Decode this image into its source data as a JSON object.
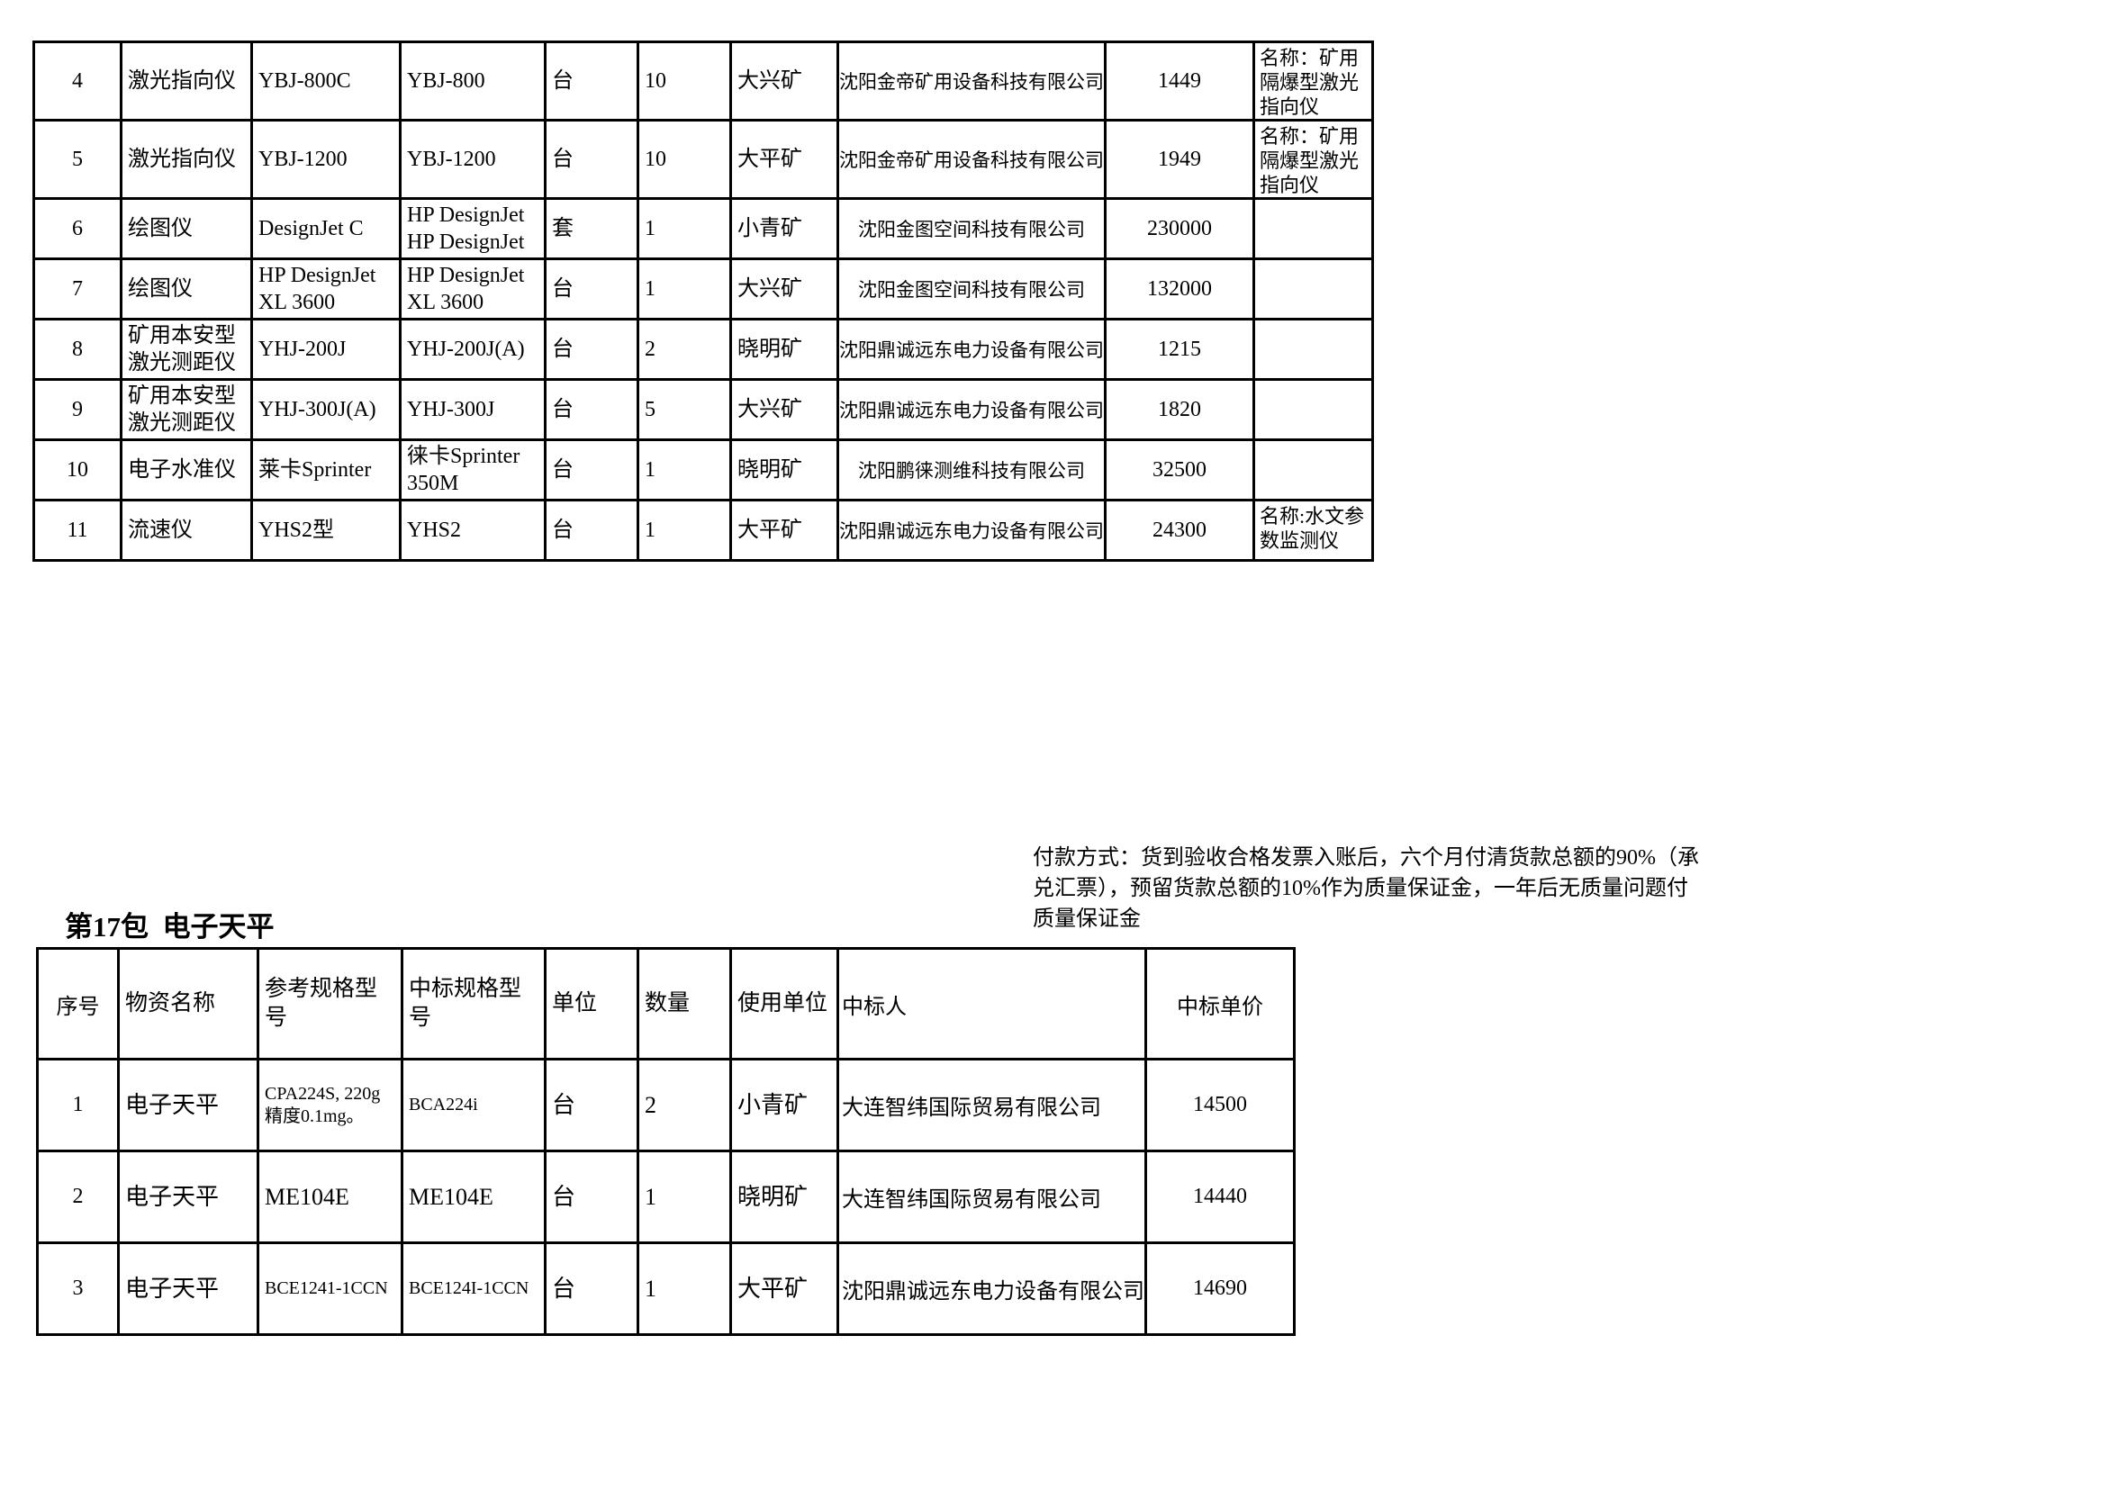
{
  "table1": {
    "rows": [
      {
        "seq": "4",
        "name": "激光指向仪",
        "ref": "YBJ-800C",
        "win": "YBJ-800",
        "unit": "台",
        "qty": "10",
        "user": "大兴矿",
        "bidder": "沈阳金帝矿用设备科技有限公司",
        "price": "1449",
        "note": "名称：矿用隔爆型激光指向仪"
      },
      {
        "seq": "5",
        "name": "激光指向仪",
        "ref": "YBJ-1200",
        "win": "YBJ-1200",
        "unit": "台",
        "qty": "10",
        "user": "大平矿",
        "bidder": "沈阳金帝矿用设备科技有限公司",
        "price": "1949",
        "note": "名称：矿用隔爆型激光指向仪"
      },
      {
        "seq": "6",
        "name": "绘图仪",
        "ref": "DesignJet C",
        "win": "HP DesignJet HP DesignJet",
        "unit": "套",
        "qty": "1",
        "user": "小青矿",
        "bidder": "沈阳金图空间科技有限公司",
        "price": "230000",
        "note": ""
      },
      {
        "seq": "7",
        "name": "绘图仪",
        "ref": "HP DesignJet XL 3600",
        "win": "HP DesignJet XL 3600",
        "unit": "台",
        "qty": "1",
        "user": "大兴矿",
        "bidder": "沈阳金图空间科技有限公司",
        "price": "132000",
        "note": ""
      },
      {
        "seq": "8",
        "name": "矿用本安型激光测距仪",
        "ref": "YHJ-200J",
        "win": "YHJ-200J(A)",
        "unit": "台",
        "qty": "2",
        "user": "晓明矿",
        "bidder": "沈阳鼎诚远东电力设备有限公司",
        "price": "1215",
        "note": ""
      },
      {
        "seq": "9",
        "name": "矿用本安型激光测距仪",
        "ref": "YHJ-300J(A)",
        "win": "YHJ-300J",
        "unit": "台",
        "qty": "5",
        "user": "大兴矿",
        "bidder": "沈阳鼎诚远东电力设备有限公司",
        "price": "1820",
        "note": ""
      },
      {
        "seq": "10",
        "name": "电子水准仪",
        "ref": "莱卡Sprinter",
        "win": "徕卡Sprinter 350M",
        "unit": "台",
        "qty": "1",
        "user": "晓明矿",
        "bidder": "沈阳鹏徕测维科技有限公司",
        "price": "32500",
        "note": ""
      },
      {
        "seq": "11",
        "name": "流速仪",
        "ref": "YHS2型",
        "win": "YHS2",
        "unit": "台",
        "qty": "1",
        "user": "大平矿",
        "bidder": "沈阳鼎诚远东电力设备有限公司",
        "price": "24300",
        "note": "名称:水文参数监测仪"
      }
    ]
  },
  "payment_note": {
    "lines": [
      "付款方式：货到验收合格发票入账后，六个月付清货款总额的90%（承",
      "兑汇票），预留货款总额的10%作为质量保证金，一年后无质量问题付",
      "质量保证金"
    ]
  },
  "table2": {
    "title": "第17包  电子天平",
    "headers": [
      "序号",
      "物资名称",
      "参考规格型号",
      "中标规格型号",
      "单位",
      "数量",
      "使用单位",
      "中标人",
      "中标单价"
    ],
    "rows": [
      {
        "seq": "1",
        "name": "电子天平",
        "ref": "CPA224S,  220g 精度0.1mg。",
        "win": "BCA224i",
        "unit": "台",
        "qty": "2",
        "user": "小青矿",
        "bidder": "大连智纬国际贸易有限公司",
        "price": "14500",
        "small": [
          "ref",
          "win"
        ]
      },
      {
        "seq": "2",
        "name": "电子天平",
        "ref": "ME104E",
        "win": "ME104E",
        "unit": "台",
        "qty": "1",
        "user": "晓明矿",
        "bidder": "大连智纬国际贸易有限公司",
        "price": "14440"
      },
      {
        "seq": "3",
        "name": "电子天平",
        "ref": "BCE1241-1CCN",
        "win": "BCE124I-1CCN",
        "unit": "台",
        "qty": "1",
        "user": "大平矿",
        "bidder": "沈阳鼎诚远东电力设备有限公司",
        "price": "14690",
        "small": [
          "ref",
          "win"
        ]
      }
    ]
  }
}
